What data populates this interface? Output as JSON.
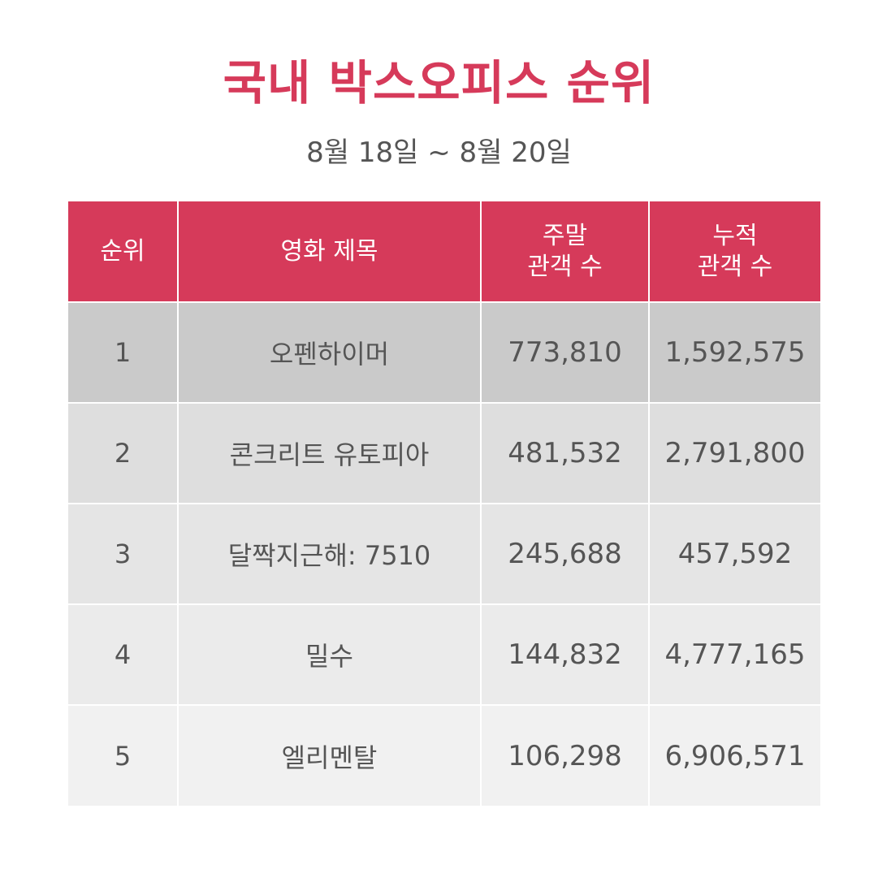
{
  "title": "국내 박스오피스 순위",
  "subtitle": "8월 18일 ~ 8월 20일",
  "colors": {
    "accent": "#d63a5a",
    "row_backgrounds": [
      "#cacaca",
      "#dedede",
      "#e5e5e5",
      "#ebebeb",
      "#f1f1f1"
    ]
  },
  "table": {
    "headers": {
      "rank": "순위",
      "title": "영화 제목",
      "weekend_line1": "주말",
      "weekend_line2": "관객 수",
      "total_line1": "누적",
      "total_line2": "관객 수"
    },
    "rows": [
      {
        "rank": "1",
        "title": "오펜하이머",
        "weekend": "773,810",
        "total": "1,592,575"
      },
      {
        "rank": "2",
        "title": "콘크리트 유토피아",
        "weekend": "481,532",
        "total": "2,791,800"
      },
      {
        "rank": "3",
        "title": "달짝지근해: 7510",
        "weekend": "245,688",
        "total": "457,592"
      },
      {
        "rank": "4",
        "title": "밀수",
        "weekend": "144,832",
        "total": "4,777,165"
      },
      {
        "rank": "5",
        "title": "엘리멘탈",
        "weekend": "106,298",
        "total": "6,906,571"
      }
    ]
  }
}
